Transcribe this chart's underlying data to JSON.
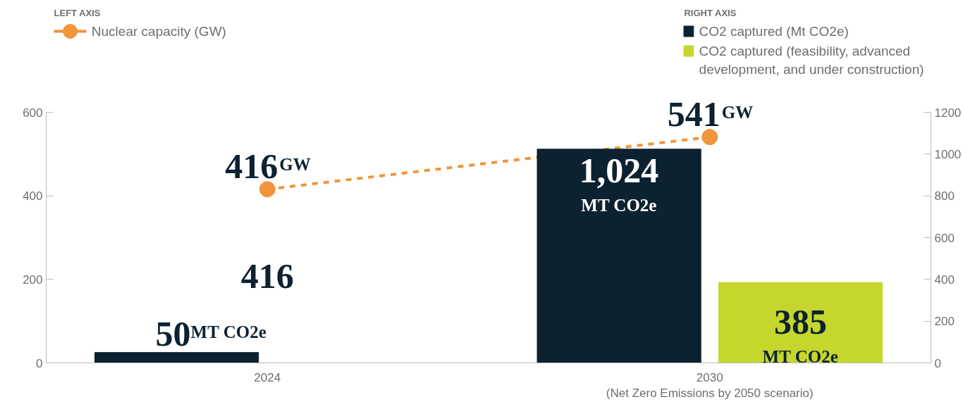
{
  "chart_data": {
    "type": "bar",
    "categories": [
      "2024",
      "2030\n(Net Zero Emissions by 2050 scenario)"
    ],
    "series": [
      {
        "name": "Nuclear capacity (GW)",
        "type": "line",
        "axis": "y",
        "color": "#f0953a",
        "marker": "circle",
        "line_style": "dashed",
        "values": [
          416,
          541
        ],
        "value_labels": [
          "416GW",
          "541GW"
        ]
      },
      {
        "name": "CO2 captured (Mt CO2e)",
        "axis": "y2",
        "color": "#0d2230",
        "values": [
          50,
          1024
        ],
        "value_labels": [
          "50MT CO2e",
          "1,024 MT CO2e"
        ]
      },
      {
        "name": "CO2 captured (feasibility, advanced\ndevelopment, and under construction)",
        "axis": "y2",
        "color": "#c5d62d",
        "values": [
          null,
          385
        ],
        "value_labels": [
          null,
          "385 MT CO2e"
        ]
      }
    ],
    "ylim": [
      0,
      600
    ],
    "yticks": [
      0,
      200,
      400,
      600
    ],
    "y2lim": [
      0,
      1200
    ],
    "y2ticks": [
      0,
      200,
      400,
      600,
      800,
      1000,
      1200
    ],
    "grid": false,
    "legend": "top",
    "annotations": [
      "LEFT AXIS",
      "RIGHT AXIS",
      "416"
    ]
  }
}
